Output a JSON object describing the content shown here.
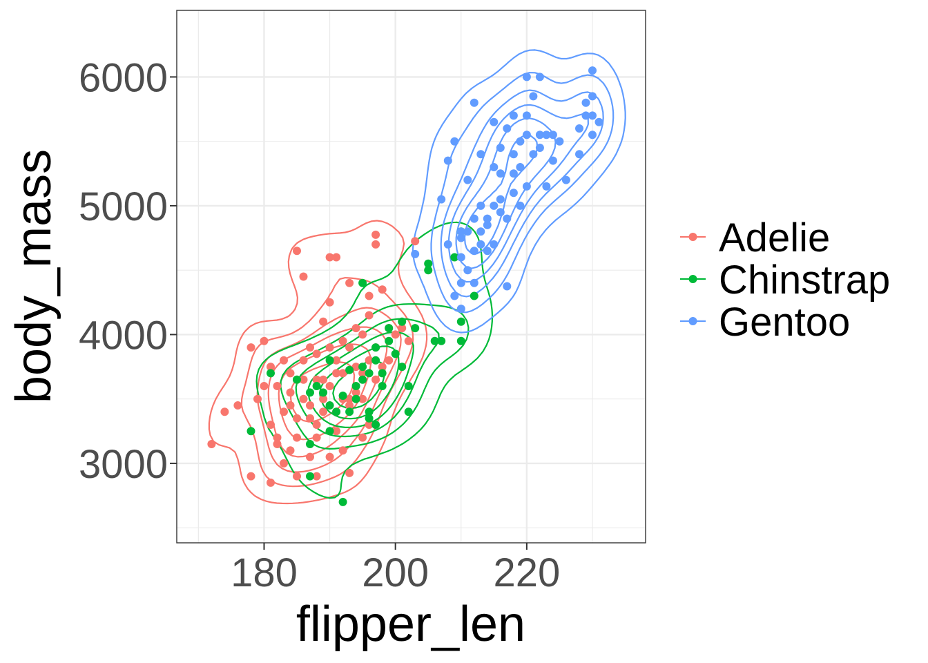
{
  "chart_data": {
    "type": "scatter",
    "title": "",
    "xlabel": "flipper_len",
    "ylabel": "body_mass",
    "xlim": [
      166.7,
      238.1
    ],
    "ylim": [
      2383,
      6517
    ],
    "x_ticks": [
      180,
      200,
      220
    ],
    "y_ticks": [
      3000,
      4000,
      5000,
      6000
    ],
    "x_minor": [
      170,
      190,
      210,
      230
    ],
    "y_minor": [
      2500,
      3500,
      4500,
      5500
    ],
    "grid": true,
    "legend_position": "right",
    "series": [
      {
        "name": "Adelie",
        "color": "#F8766D",
        "points": [
          [
            172,
            3150
          ],
          [
            174,
            3400
          ],
          [
            176,
            3450
          ],
          [
            178,
            2900
          ],
          [
            178,
            3900
          ],
          [
            179,
            3500
          ],
          [
            180,
            3950
          ],
          [
            180,
            3600
          ],
          [
            181,
            3750
          ],
          [
            181,
            3300
          ],
          [
            181,
            2850
          ],
          [
            182,
            3200
          ],
          [
            182,
            3600
          ],
          [
            182,
            3150
          ],
          [
            183,
            3400
          ],
          [
            183,
            3800
          ],
          [
            183,
            3000
          ],
          [
            184,
            3700
          ],
          [
            184,
            3450
          ],
          [
            184,
            3550
          ],
          [
            184,
            3100
          ],
          [
            185,
            4650
          ],
          [
            185,
            3650
          ],
          [
            185,
            3350
          ],
          [
            185,
            3200
          ],
          [
            185,
            2900
          ],
          [
            186,
            3800
          ],
          [
            186,
            3500
          ],
          [
            186,
            4450
          ],
          [
            186,
            3650
          ],
          [
            187,
            3900
          ],
          [
            187,
            3450
          ],
          [
            187,
            3350
          ],
          [
            187,
            3050
          ],
          [
            188,
            3650
          ],
          [
            188,
            3850
          ],
          [
            188,
            3300
          ],
          [
            188,
            3200
          ],
          [
            188,
            2900
          ],
          [
            189,
            4100
          ],
          [
            189,
            3500
          ],
          [
            189,
            3400
          ],
          [
            189,
            3650
          ],
          [
            190,
            3900
          ],
          [
            190,
            3600
          ],
          [
            190,
            4250
          ],
          [
            190,
            3050
          ],
          [
            190,
            4600
          ],
          [
            191,
            3800
          ],
          [
            191,
            3700
          ],
          [
            191,
            3400
          ],
          [
            191,
            4600
          ],
          [
            191,
            3250
          ],
          [
            192,
            3950
          ],
          [
            192,
            3700
          ],
          [
            192,
            3500
          ],
          [
            192,
            3100
          ],
          [
            193,
            4400
          ],
          [
            193,
            3900
          ],
          [
            193,
            3500
          ],
          [
            193,
            3450
          ],
          [
            193,
            2925
          ],
          [
            194,
            3750
          ],
          [
            194,
            4050
          ],
          [
            194,
            3550
          ],
          [
            195,
            3700
          ],
          [
            195,
            4000
          ],
          [
            195,
            3500
          ],
          [
            195,
            3200
          ],
          [
            196,
            4150
          ],
          [
            196,
            3800
          ],
          [
            196,
            3300
          ],
          [
            196,
            4300
          ],
          [
            197,
            4700
          ],
          [
            197,
            3900
          ],
          [
            197,
            3650
          ],
          [
            197,
            4775
          ],
          [
            198,
            4350
          ],
          [
            198,
            3750
          ],
          [
            199,
            4050
          ],
          [
            199,
            3800
          ],
          [
            200,
            4000
          ],
          [
            201,
            4050
          ],
          [
            202,
            3950
          ],
          [
            203,
            4725
          ]
        ]
      },
      {
        "name": "Chinstrap",
        "color": "#00BA38",
        "points": [
          [
            178,
            3250
          ],
          [
            181,
            3700
          ],
          [
            185,
            3650
          ],
          [
            187,
            3550
          ],
          [
            187,
            3150
          ],
          [
            187,
            2900
          ],
          [
            188,
            3600
          ],
          [
            189,
            3550
          ],
          [
            190,
            3450
          ],
          [
            190,
            3250
          ],
          [
            190,
            3800
          ],
          [
            191,
            3400
          ],
          [
            192,
            2700
          ],
          [
            192,
            3525
          ],
          [
            193,
            3400
          ],
          [
            193,
            3725
          ],
          [
            194,
            3500
          ],
          [
            194,
            3600
          ],
          [
            195,
            3650
          ],
          [
            195,
            3750
          ],
          [
            195,
            4400
          ],
          [
            196,
            3700
          ],
          [
            196,
            3400
          ],
          [
            196,
            3350
          ],
          [
            197,
            3800
          ],
          [
            197,
            3900
          ],
          [
            197,
            3300
          ],
          [
            198,
            3700
          ],
          [
            198,
            3600
          ],
          [
            199,
            4050
          ],
          [
            199,
            3950
          ],
          [
            200,
            3850
          ],
          [
            201,
            3750
          ],
          [
            201,
            4100
          ],
          [
            202,
            3400
          ],
          [
            202,
            3600
          ],
          [
            203,
            4050
          ],
          [
            205,
            4550
          ],
          [
            205,
            4500
          ],
          [
            206,
            3950
          ],
          [
            207,
            3950
          ],
          [
            209,
            4600
          ],
          [
            210,
            4100
          ],
          [
            210,
            3950
          ],
          [
            210,
            4800
          ],
          [
            212,
            4300
          ]
        ]
      },
      {
        "name": "Gentoo",
        "color": "#619CFF",
        "points": [
          [
            203,
            4625
          ],
          [
            207,
            5050
          ],
          [
            208,
            5350
          ],
          [
            208,
            4700
          ],
          [
            209,
            5500
          ],
          [
            209,
            4300
          ],
          [
            210,
            4750
          ],
          [
            210,
            4600
          ],
          [
            210,
            4400
          ],
          [
            210,
            4200
          ],
          [
            210,
            4800
          ],
          [
            211,
            4800
          ],
          [
            211,
            4500
          ],
          [
            211,
            5200
          ],
          [
            212,
            4900
          ],
          [
            212,
            4650
          ],
          [
            212,
            4400
          ],
          [
            212,
            5800
          ],
          [
            213,
            4800
          ],
          [
            213,
            4700
          ],
          [
            213,
            5400
          ],
          [
            213,
            5000
          ],
          [
            214,
            4850
          ],
          [
            214,
            4650
          ],
          [
            214,
            4900
          ],
          [
            215,
            5000
          ],
          [
            215,
            5650
          ],
          [
            215,
            4700
          ],
          [
            215,
            5300
          ],
          [
            216,
            5050
          ],
          [
            216,
            4950
          ],
          [
            216,
            5450
          ],
          [
            216,
            5250
          ],
          [
            217,
            4900
          ],
          [
            217,
            5600
          ],
          [
            217,
            4375
          ],
          [
            218,
            5400
          ],
          [
            218,
            5100
          ],
          [
            218,
            5700
          ],
          [
            218,
            5250
          ],
          [
            219,
            5000
          ],
          [
            219,
            5500
          ],
          [
            219,
            5300
          ],
          [
            220,
            5150
          ],
          [
            220,
            5550
          ],
          [
            220,
            5700
          ],
          [
            220,
            6000
          ],
          [
            221,
            5850
          ],
          [
            221,
            5400
          ],
          [
            222,
            5450
          ],
          [
            222,
            6000
          ],
          [
            222,
            5550
          ],
          [
            223,
            5150
          ],
          [
            223,
            5550
          ],
          [
            224,
            5350
          ],
          [
            224,
            5550
          ],
          [
            225,
            5500
          ],
          [
            226,
            5200
          ],
          [
            228,
            5600
          ],
          [
            228,
            5400
          ],
          [
            229,
            5700
          ],
          [
            229,
            5800
          ],
          [
            230,
            5700
          ],
          [
            230,
            5550
          ],
          [
            230,
            5850
          ],
          [
            230,
            6050
          ],
          [
            231,
            5650
          ]
        ]
      }
    ]
  }
}
